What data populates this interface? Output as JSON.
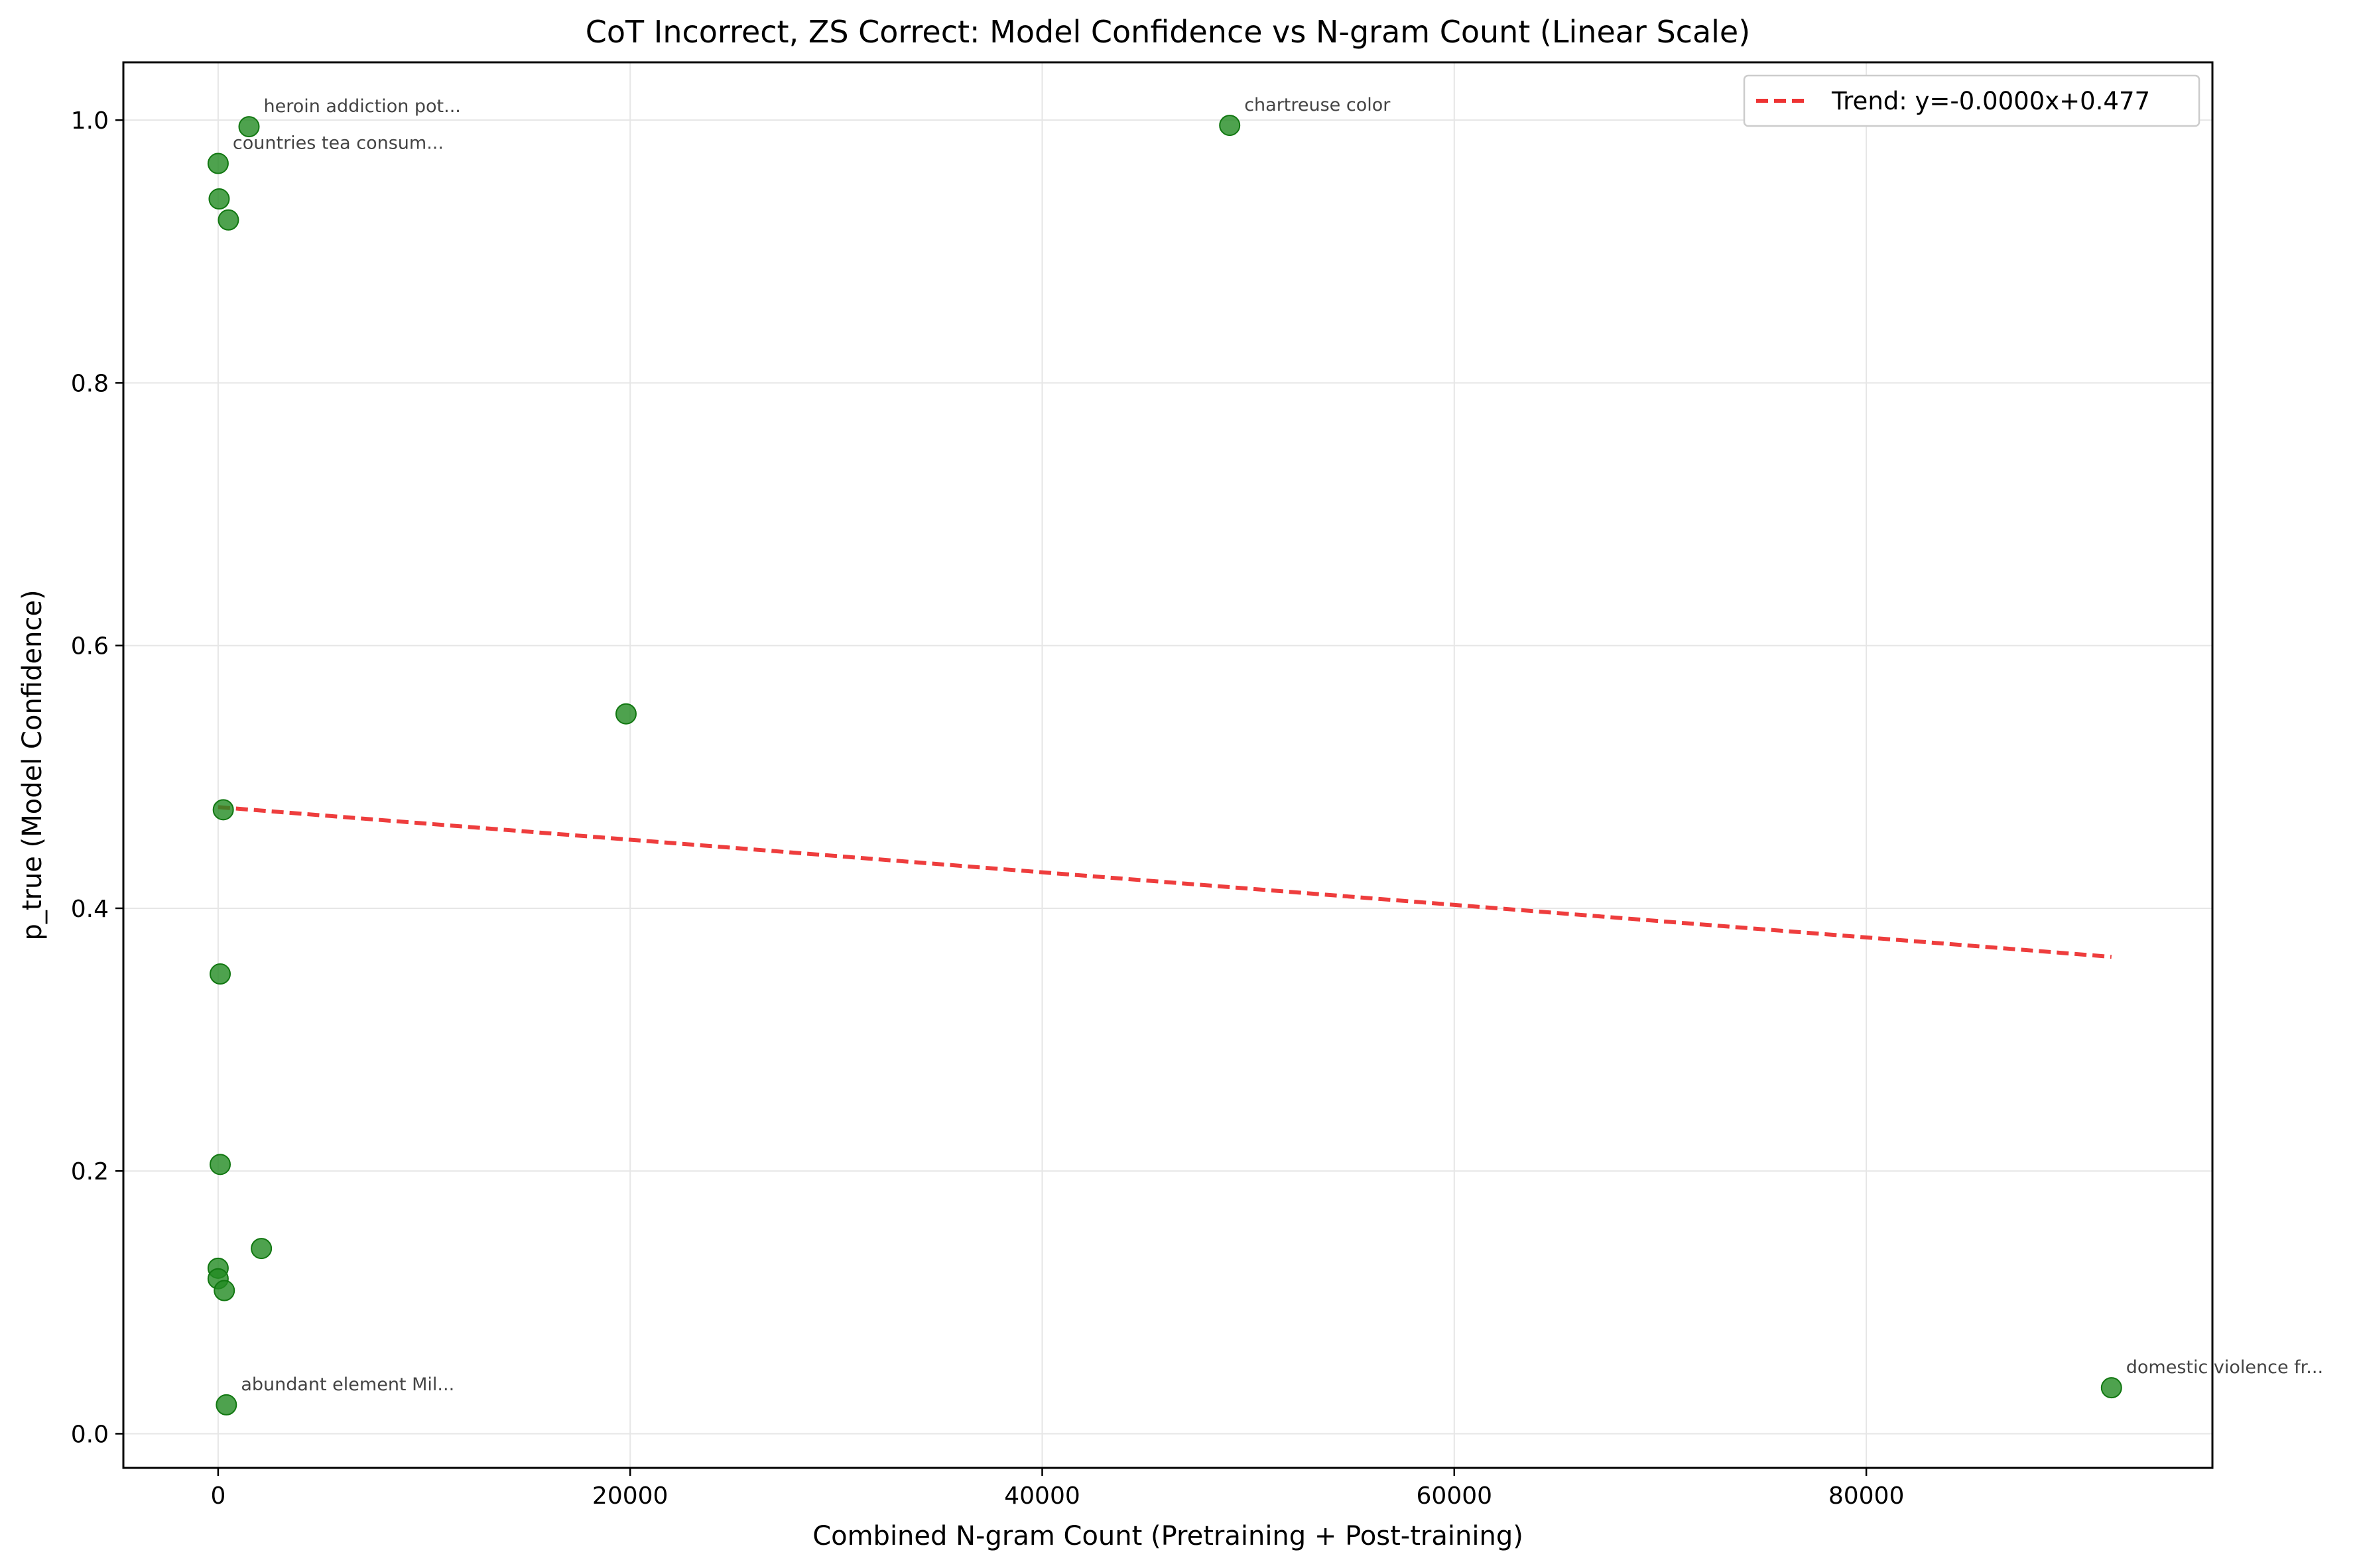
{
  "chart_data": {
    "type": "scatter",
    "title": "CoT Incorrect, ZS Correct: Model Confidence vs N-gram Count (Linear Scale)",
    "xlabel": "Combined N-gram Count (Pretraining + Post-training)",
    "ylabel": "p_true (Model Confidence)",
    "xlim": [
      -4600,
      96800
    ],
    "ylim": [
      -0.026,
      1.044
    ],
    "xticks": [
      0,
      20000,
      40000,
      60000,
      80000
    ],
    "yticks": [
      0.0,
      0.2,
      0.4,
      0.6,
      0.8,
      1.0
    ],
    "xtick_labels": [
      "0",
      "20000",
      "40000",
      "60000",
      "80000"
    ],
    "ytick_labels": [
      "0.0",
      "0.2",
      "0.4",
      "0.6",
      "0.8",
      "1.0"
    ],
    "grid": true,
    "legend_position": "top-right",
    "point_color": "#228B22",
    "trend_color": "#EE3333",
    "points": [
      {
        "x": 1500,
        "y": 0.995,
        "label": "heroin addiction pot..."
      },
      {
        "x": 49100,
        "y": 0.996,
        "label": "chartreuse color"
      },
      {
        "x": 0,
        "y": 0.967,
        "label": "countries tea consum..."
      },
      {
        "x": 50,
        "y": 0.94
      },
      {
        "x": 500,
        "y": 0.924
      },
      {
        "x": 19800,
        "y": 0.548
      },
      {
        "x": 250,
        "y": 0.475
      },
      {
        "x": 100,
        "y": 0.35
      },
      {
        "x": 100,
        "y": 0.205
      },
      {
        "x": 2100,
        "y": 0.141
      },
      {
        "x": 0,
        "y": 0.126
      },
      {
        "x": 0,
        "y": 0.118
      },
      {
        "x": 300,
        "y": 0.109
      },
      {
        "x": 400,
        "y": 0.022,
        "label": "abundant element Mil..."
      },
      {
        "x": 91900,
        "y": 0.035,
        "label": "domestic violence fr..."
      }
    ],
    "trend": {
      "name": "Trend: y=-0.0000x+0.477",
      "slope": -1.24e-06,
      "intercept": 0.477,
      "x_range": [
        0,
        91900
      ]
    }
  }
}
